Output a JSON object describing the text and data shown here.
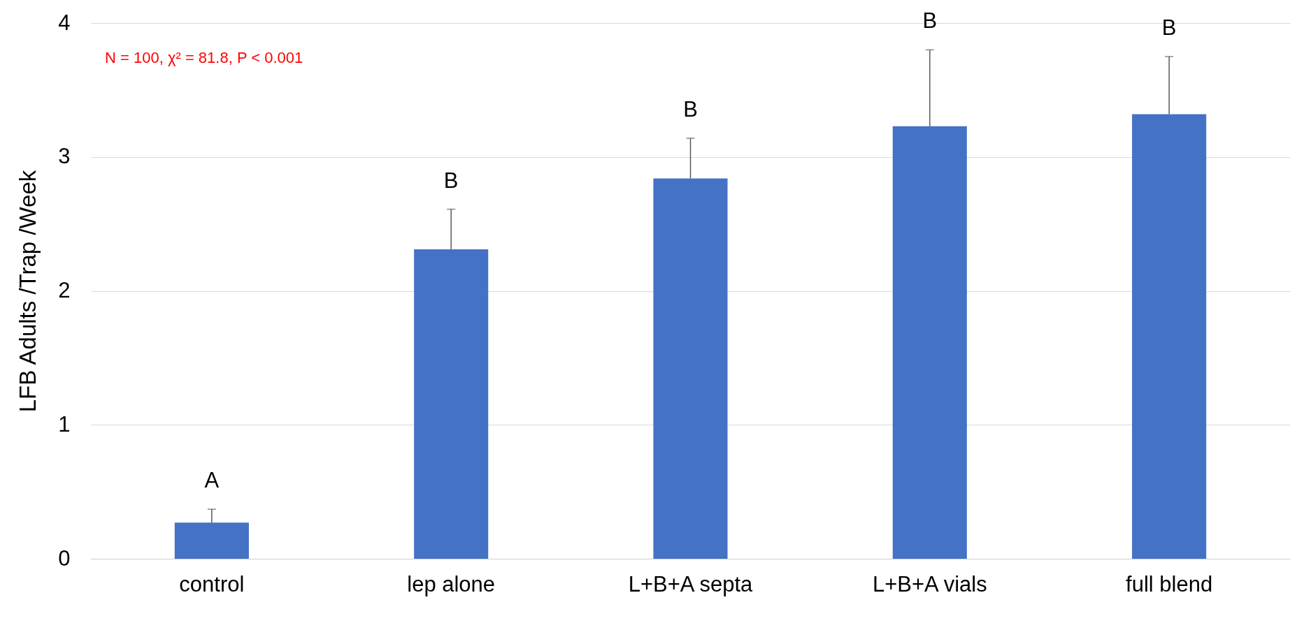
{
  "chart_data": {
    "type": "bar",
    "ylabel": "LFB Adults /Trap /Week",
    "categories": [
      "control",
      "lep alone",
      "L+B+A septa",
      "L+B+A vials",
      "full blend"
    ],
    "values": [
      0.27,
      2.31,
      2.84,
      3.23,
      3.32
    ],
    "errors": [
      [
        0.27,
        0.37
      ],
      [
        2.31,
        2.61
      ],
      [
        2.84,
        3.14
      ],
      [
        3.23,
        3.8
      ],
      [
        3.32,
        3.75
      ]
    ],
    "color": "#4472c4",
    "ylim": [
      0,
      4
    ],
    "yticks": [
      0,
      1,
      2,
      3,
      4
    ],
    "grid": "y",
    "annotations": [
      "N = 100, χ² = 81.8, P < 0.001",
      {
        "text": "A",
        "x": "control",
        "y": 0.37
      },
      {
        "text": "B",
        "x": "lep alone",
        "y": 2.61
      },
      {
        "text": "B",
        "x": "L+B+A septa",
        "y": 3.14
      },
      {
        "text": "B",
        "x": "L+B+A vials",
        "y": 3.8
      },
      {
        "text": "B",
        "x": "full blend",
        "y": 3.75
      }
    ]
  }
}
